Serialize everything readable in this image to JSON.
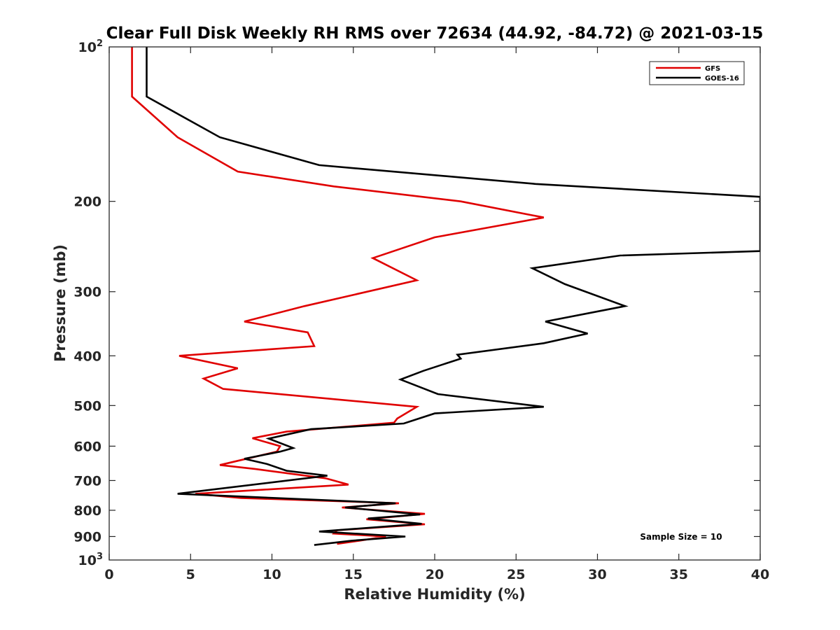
{
  "chart_data": {
    "type": "line",
    "title": "Clear Full Disk Weekly RH RMS over 72634 (44.92, -84.72) @ 2021-03-15",
    "xlabel": "Relative Humidity (%)",
    "ylabel": "Pressure (mb)",
    "xlim": [
      0,
      40
    ],
    "ylim": [
      100,
      1000
    ],
    "yscale": "log",
    "y_reversed": true,
    "x_ticks": [
      0,
      5,
      10,
      15,
      20,
      25,
      30,
      35,
      40
    ],
    "x_tick_labels": [
      "0",
      "5",
      "10",
      "15",
      "20",
      "25",
      "30",
      "35",
      "40"
    ],
    "y_ticks": [
      200,
      300,
      400,
      500,
      600,
      700,
      800,
      900
    ],
    "y_tick_labels": [
      "200",
      "300",
      "400",
      "500",
      "600",
      "700",
      "800",
      "900"
    ],
    "y_end_ticks": [
      {
        "value": 100,
        "base": "10",
        "exp": "2"
      },
      {
        "value": 1000,
        "base": "10",
        "exp": "3"
      }
    ],
    "legend_position": "top-right",
    "annotation": "Sample Size = 10",
    "series": [
      {
        "name": "GFS",
        "color": "#e00000",
        "points": [
          [
            1.4,
            100
          ],
          [
            1.4,
            125
          ],
          [
            4.2,
            150
          ],
          [
            7.9,
            175
          ],
          [
            13.8,
            187
          ],
          [
            21.6,
            200
          ],
          [
            26.7,
            215
          ],
          [
            20.0,
            235
          ],
          [
            16.2,
            258
          ],
          [
            18.9,
            285
          ],
          [
            12.0,
            320
          ],
          [
            8.3,
            343
          ],
          [
            12.2,
            360
          ],
          [
            12.6,
            383
          ],
          [
            4.3,
            400
          ],
          [
            7.9,
            423
          ],
          [
            5.8,
            443
          ],
          [
            7.0,
            464
          ],
          [
            18.9,
            503
          ],
          [
            17.7,
            530
          ],
          [
            17.5,
            540
          ],
          [
            10.9,
            562
          ],
          [
            8.8,
            579
          ],
          [
            10.5,
            600
          ],
          [
            10.3,
            615
          ],
          [
            6.8,
            653
          ],
          [
            9.0,
            665
          ],
          [
            13.3,
            693
          ],
          [
            14.7,
            713
          ],
          [
            5.3,
            743
          ],
          [
            8.1,
            757
          ],
          [
            17.8,
            775
          ],
          [
            14.3,
            790
          ],
          [
            19.4,
            813
          ],
          [
            15.8,
            833
          ],
          [
            19.4,
            852
          ],
          [
            14.0,
            875
          ],
          [
            13.8,
            888
          ],
          [
            17.0,
            900
          ],
          [
            15.4,
            917
          ],
          [
            14.0,
            930
          ]
        ]
      },
      {
        "name": "GOES-16",
        "color": "#000000",
        "points": [
          [
            2.3,
            100
          ],
          [
            2.3,
            125
          ],
          [
            6.8,
            150
          ],
          [
            12.9,
            170
          ],
          [
            26.2,
            185
          ],
          [
            40.0,
            196
          ],
          [
            40.0,
            250
          ],
          [
            31.4,
            255
          ],
          [
            26.0,
            270
          ],
          [
            28.0,
            290
          ],
          [
            31.7,
            320
          ],
          [
            26.8,
            343
          ],
          [
            29.4,
            362
          ],
          [
            26.7,
            378
          ],
          [
            21.4,
            398
          ],
          [
            21.6,
            405
          ],
          [
            19.3,
            428
          ],
          [
            17.9,
            445
          ],
          [
            20.2,
            475
          ],
          [
            26.7,
            503
          ],
          [
            20.0,
            518
          ],
          [
            18.1,
            542
          ],
          [
            12.4,
            556
          ],
          [
            9.8,
            580
          ],
          [
            11.3,
            605
          ],
          [
            10.5,
            615
          ],
          [
            8.3,
            635
          ],
          [
            9.7,
            650
          ],
          [
            10.9,
            670
          ],
          [
            13.4,
            685
          ],
          [
            4.2,
            743
          ],
          [
            17.6,
            775
          ],
          [
            14.5,
            790
          ],
          [
            19.1,
            815
          ],
          [
            15.9,
            830
          ],
          [
            19.2,
            850
          ],
          [
            12.9,
            880
          ],
          [
            18.2,
            900
          ],
          [
            14.9,
            917
          ],
          [
            12.6,
            935
          ]
        ]
      }
    ]
  }
}
